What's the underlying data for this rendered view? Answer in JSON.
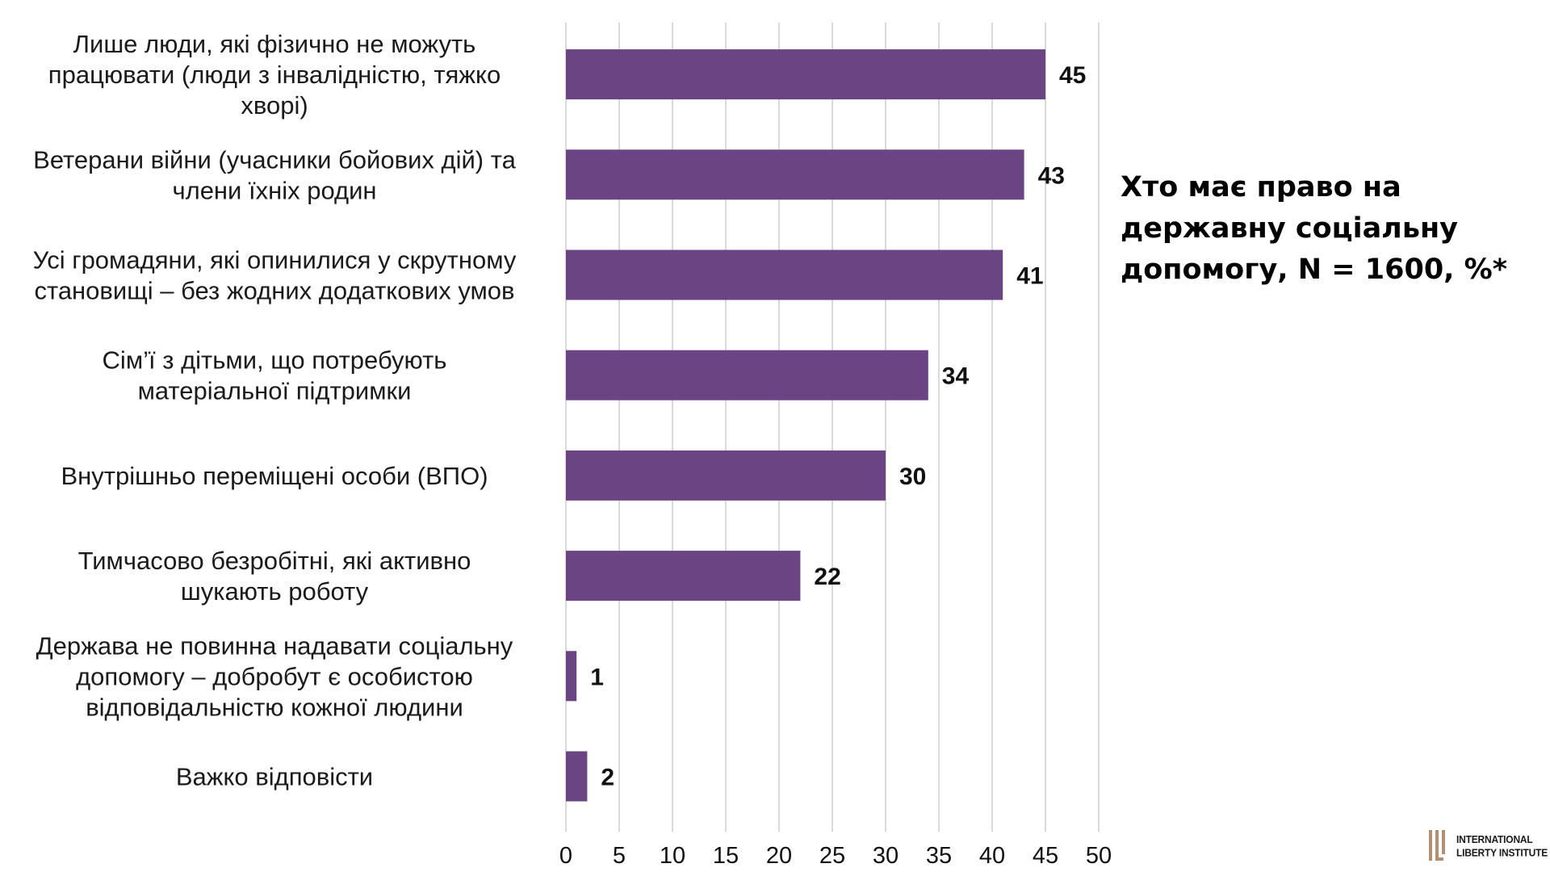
{
  "chart_data": {
    "type": "bar",
    "orientation": "horizontal",
    "title": "Хто має право на державну соціальну допомогу, N = 1600, %*",
    "categories": [
      [
        "Лише люди, які фізично не можуть",
        "працювати (люди з інвалідністю, тяжко",
        "хворі)"
      ],
      [
        "Ветерани війни (учасники бойових дій) та",
        "члени їхніх родин"
      ],
      [
        "Усі громадяни, які опинилися у скрутному",
        "становищі – без жодних додаткових умов"
      ],
      [
        "Сім’ї з дітьми, що потребують",
        "матеріальної підтримки"
      ],
      [
        "Внутрішньо переміщені особи (ВПО)"
      ],
      [
        "Тимчасово безробітні, які активно",
        "шукають роботу"
      ],
      [
        "Держава не повинна надавати соціальну",
        "допомогу – добробут є особистою",
        "відповідальністю кожної людини"
      ],
      [
        "Важко відповісти"
      ]
    ],
    "values": [
      45,
      43,
      41,
      34,
      30,
      22,
      1,
      2
    ],
    "xlim": [
      0,
      50
    ],
    "xticks": [
      0,
      5,
      10,
      15,
      20,
      25,
      30,
      35,
      40,
      45,
      50
    ],
    "grid": "vertical",
    "legend": "none",
    "bar_color": "#6b4483",
    "grid_color": "#d9d9d9"
  },
  "title_lines": [
    "Хто має право на",
    "державну соціальну",
    "допомогу, N = 1600, %*"
  ],
  "logo": {
    "line1": "INTERNATIONAL",
    "line2": "LIBERTY INSTITUTE",
    "mark_color": "#b09070"
  }
}
